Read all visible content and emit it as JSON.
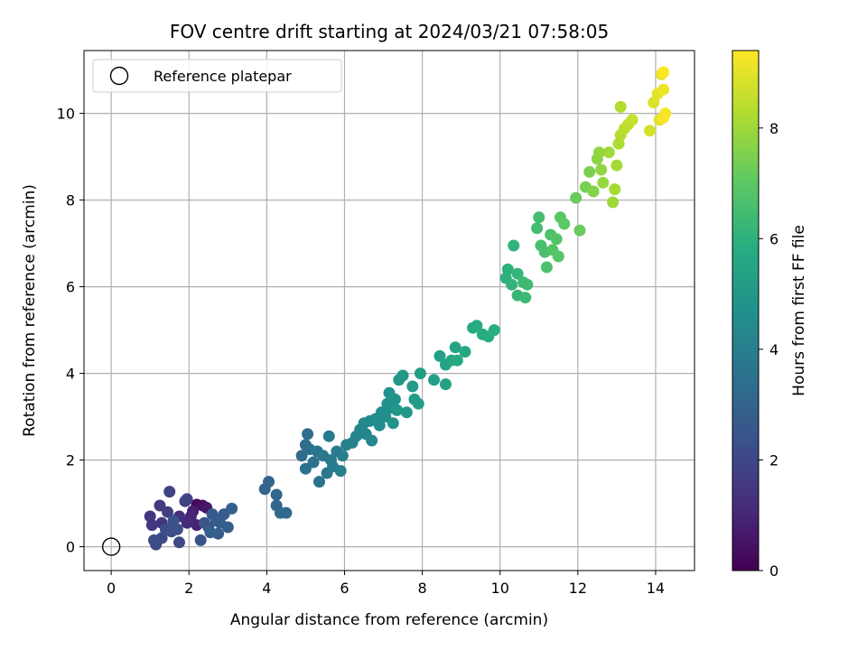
{
  "chart_data": {
    "type": "scatter",
    "title": "FOV centre drift starting at 2024/03/21 07:58:05",
    "xlabel": "Angular distance from reference (arcmin)",
    "ylabel": "Rotation from reference (arcmin)",
    "xlim": [
      -0.7,
      15.0
    ],
    "ylim": [
      -0.55,
      11.45
    ],
    "xticks": [
      0,
      2,
      4,
      6,
      8,
      10,
      12,
      14
    ],
    "yticks": [
      0,
      2,
      4,
      6,
      8,
      10
    ],
    "grid": true,
    "legend": {
      "location": "upper-left",
      "entries": [
        "Reference platepar"
      ]
    },
    "colorbar": {
      "label": "Hours from first FF file",
      "colormap": "viridis",
      "range": [
        0,
        9.4
      ],
      "ticks": [
        0,
        2,
        4,
        6,
        8
      ]
    },
    "reference_point": {
      "x": 0,
      "y": 0,
      "label": "Reference platepar"
    },
    "points": [
      {
        "x": 2.2,
        "y": 0.97,
        "h": 0.2
      },
      {
        "x": 2.35,
        "y": 0.95,
        "h": 0.4
      },
      {
        "x": 2.45,
        "y": 0.9,
        "h": 0.6
      },
      {
        "x": 2.1,
        "y": 0.82,
        "h": 0.8
      },
      {
        "x": 2.2,
        "y": 0.5,
        "h": 0.9
      },
      {
        "x": 2.05,
        "y": 0.7,
        "h": 1.0
      },
      {
        "x": 1.95,
        "y": 0.55,
        "h": 1.1
      },
      {
        "x": 1.75,
        "y": 0.7,
        "h": 1.2
      },
      {
        "x": 1.6,
        "y": 0.5,
        "h": 1.3
      },
      {
        "x": 1.3,
        "y": 0.55,
        "h": 1.4
      },
      {
        "x": 1.05,
        "y": 0.5,
        "h": 1.5
      },
      {
        "x": 1.0,
        "y": 0.7,
        "h": 1.5
      },
      {
        "x": 1.25,
        "y": 0.95,
        "h": 1.6
      },
      {
        "x": 1.45,
        "y": 0.8,
        "h": 1.7
      },
      {
        "x": 1.5,
        "y": 1.27,
        "h": 1.8
      },
      {
        "x": 1.9,
        "y": 1.05,
        "h": 1.8
      },
      {
        "x": 1.95,
        "y": 1.1,
        "h": 1.9
      },
      {
        "x": 1.75,
        "y": 0.1,
        "h": 2.0
      },
      {
        "x": 1.15,
        "y": 0.1,
        "h": 2.0
      },
      {
        "x": 1.3,
        "y": 0.2,
        "h": 2.1
      },
      {
        "x": 1.15,
        "y": 0.05,
        "h": 2.1
      },
      {
        "x": 1.1,
        "y": 0.15,
        "h": 2.2
      },
      {
        "x": 1.4,
        "y": 0.4,
        "h": 2.2
      },
      {
        "x": 1.55,
        "y": 0.35,
        "h": 2.3
      },
      {
        "x": 1.7,
        "y": 0.4,
        "h": 2.3
      },
      {
        "x": 1.6,
        "y": 0.6,
        "h": 2.4
      },
      {
        "x": 2.3,
        "y": 0.15,
        "h": 2.4
      },
      {
        "x": 2.4,
        "y": 0.55,
        "h": 2.5
      },
      {
        "x": 2.5,
        "y": 0.45,
        "h": 2.5
      },
      {
        "x": 2.6,
        "y": 0.75,
        "h": 2.6
      },
      {
        "x": 2.7,
        "y": 0.6,
        "h": 2.6
      },
      {
        "x": 2.75,
        "y": 0.3,
        "h": 2.7
      },
      {
        "x": 2.9,
        "y": 0.75,
        "h": 2.7
      },
      {
        "x": 2.8,
        "y": 0.55,
        "h": 2.8
      },
      {
        "x": 3.0,
        "y": 0.45,
        "h": 2.8
      },
      {
        "x": 3.1,
        "y": 0.88,
        "h": 2.9
      },
      {
        "x": 2.55,
        "y": 0.33,
        "h": 2.9
      },
      {
        "x": 3.95,
        "y": 1.33,
        "h": 3.0
      },
      {
        "x": 4.05,
        "y": 1.5,
        "h": 3.0
      },
      {
        "x": 4.25,
        "y": 1.2,
        "h": 3.1
      },
      {
        "x": 4.25,
        "y": 0.95,
        "h": 3.1
      },
      {
        "x": 4.35,
        "y": 0.78,
        "h": 3.2
      },
      {
        "x": 4.5,
        "y": 0.78,
        "h": 3.2
      },
      {
        "x": 4.9,
        "y": 2.1,
        "h": 3.3
      },
      {
        "x": 5.0,
        "y": 2.35,
        "h": 3.3
      },
      {
        "x": 5.05,
        "y": 2.6,
        "h": 3.4
      },
      {
        "x": 5.1,
        "y": 2.25,
        "h": 3.4
      },
      {
        "x": 5.0,
        "y": 1.8,
        "h": 3.5
      },
      {
        "x": 5.2,
        "y": 1.95,
        "h": 3.5
      },
      {
        "x": 5.35,
        "y": 1.5,
        "h": 3.6
      },
      {
        "x": 5.3,
        "y": 2.2,
        "h": 3.6
      },
      {
        "x": 5.45,
        "y": 2.1,
        "h": 3.7
      },
      {
        "x": 5.55,
        "y": 1.7,
        "h": 3.7
      },
      {
        "x": 5.6,
        "y": 2.55,
        "h": 3.8
      },
      {
        "x": 5.65,
        "y": 2.0,
        "h": 3.8
      },
      {
        "x": 5.7,
        "y": 1.85,
        "h": 3.9
      },
      {
        "x": 5.8,
        "y": 2.2,
        "h": 3.9
      },
      {
        "x": 5.9,
        "y": 1.75,
        "h": 4.0
      },
      {
        "x": 5.95,
        "y": 2.1,
        "h": 4.0
      },
      {
        "x": 6.05,
        "y": 2.35,
        "h": 4.1
      },
      {
        "x": 6.2,
        "y": 2.4,
        "h": 4.1
      },
      {
        "x": 6.3,
        "y": 2.55,
        "h": 4.2
      },
      {
        "x": 6.4,
        "y": 2.7,
        "h": 4.2
      },
      {
        "x": 6.5,
        "y": 2.85,
        "h": 4.3
      },
      {
        "x": 6.55,
        "y": 2.6,
        "h": 4.3
      },
      {
        "x": 6.7,
        "y": 2.45,
        "h": 4.4
      },
      {
        "x": 6.65,
        "y": 2.9,
        "h": 4.4
      },
      {
        "x": 6.8,
        "y": 2.95,
        "h": 4.5
      },
      {
        "x": 6.9,
        "y": 2.8,
        "h": 4.5
      },
      {
        "x": 6.95,
        "y": 3.1,
        "h": 4.6
      },
      {
        "x": 7.05,
        "y": 3.0,
        "h": 4.6
      },
      {
        "x": 7.1,
        "y": 3.3,
        "h": 4.7
      },
      {
        "x": 7.15,
        "y": 3.55,
        "h": 4.7
      },
      {
        "x": 7.2,
        "y": 3.2,
        "h": 4.7
      },
      {
        "x": 7.25,
        "y": 2.85,
        "h": 4.8
      },
      {
        "x": 7.3,
        "y": 3.4,
        "h": 4.8
      },
      {
        "x": 7.35,
        "y": 3.15,
        "h": 4.9
      },
      {
        "x": 7.4,
        "y": 3.85,
        "h": 4.9
      },
      {
        "x": 7.5,
        "y": 3.95,
        "h": 5.0
      },
      {
        "x": 7.6,
        "y": 3.1,
        "h": 5.0
      },
      {
        "x": 7.75,
        "y": 3.7,
        "h": 5.1
      },
      {
        "x": 7.8,
        "y": 3.4,
        "h": 5.1
      },
      {
        "x": 7.9,
        "y": 3.3,
        "h": 5.2
      },
      {
        "x": 7.95,
        "y": 4.0,
        "h": 5.2
      },
      {
        "x": 8.3,
        "y": 3.85,
        "h": 5.3
      },
      {
        "x": 8.45,
        "y": 4.4,
        "h": 5.3
      },
      {
        "x": 8.6,
        "y": 3.75,
        "h": 5.4
      },
      {
        "x": 8.6,
        "y": 4.2,
        "h": 5.4
      },
      {
        "x": 8.75,
        "y": 4.3,
        "h": 5.5
      },
      {
        "x": 8.85,
        "y": 4.6,
        "h": 5.5
      },
      {
        "x": 8.9,
        "y": 4.3,
        "h": 5.6
      },
      {
        "x": 9.1,
        "y": 4.5,
        "h": 5.6
      },
      {
        "x": 9.3,
        "y": 5.05,
        "h": 5.7
      },
      {
        "x": 9.4,
        "y": 5.1,
        "h": 5.7
      },
      {
        "x": 9.55,
        "y": 4.9,
        "h": 5.8
      },
      {
        "x": 9.7,
        "y": 4.85,
        "h": 5.8
      },
      {
        "x": 9.85,
        "y": 5.0,
        "h": 5.9
      },
      {
        "x": 10.15,
        "y": 6.2,
        "h": 6.0
      },
      {
        "x": 10.2,
        "y": 6.4,
        "h": 6.0
      },
      {
        "x": 10.3,
        "y": 6.05,
        "h": 6.1
      },
      {
        "x": 10.35,
        "y": 6.95,
        "h": 6.1
      },
      {
        "x": 10.45,
        "y": 6.3,
        "h": 6.2
      },
      {
        "x": 10.45,
        "y": 5.8,
        "h": 6.2
      },
      {
        "x": 10.6,
        "y": 6.1,
        "h": 6.3
      },
      {
        "x": 10.65,
        "y": 5.75,
        "h": 6.3
      },
      {
        "x": 10.7,
        "y": 6.05,
        "h": 6.4
      },
      {
        "x": 10.95,
        "y": 7.35,
        "h": 6.5
      },
      {
        "x": 11.0,
        "y": 7.6,
        "h": 6.5
      },
      {
        "x": 11.05,
        "y": 6.95,
        "h": 6.6
      },
      {
        "x": 11.15,
        "y": 6.8,
        "h": 6.6
      },
      {
        "x": 11.2,
        "y": 6.45,
        "h": 6.7
      },
      {
        "x": 11.3,
        "y": 7.2,
        "h": 6.7
      },
      {
        "x": 11.35,
        "y": 6.85,
        "h": 6.8
      },
      {
        "x": 11.45,
        "y": 7.1,
        "h": 6.8
      },
      {
        "x": 11.5,
        "y": 6.7,
        "h": 6.9
      },
      {
        "x": 11.55,
        "y": 7.6,
        "h": 6.9
      },
      {
        "x": 11.65,
        "y": 7.45,
        "h": 7.0
      },
      {
        "x": 11.95,
        "y": 8.05,
        "h": 7.2
      },
      {
        "x": 12.05,
        "y": 7.3,
        "h": 7.2
      },
      {
        "x": 12.2,
        "y": 8.3,
        "h": 7.4
      },
      {
        "x": 12.3,
        "y": 8.65,
        "h": 7.5
      },
      {
        "x": 12.4,
        "y": 8.2,
        "h": 7.6
      },
      {
        "x": 12.5,
        "y": 8.95,
        "h": 7.7
      },
      {
        "x": 12.55,
        "y": 9.1,
        "h": 7.8
      },
      {
        "x": 12.6,
        "y": 8.7,
        "h": 7.8
      },
      {
        "x": 12.65,
        "y": 8.4,
        "h": 7.9
      },
      {
        "x": 12.8,
        "y": 9.1,
        "h": 8.0
      },
      {
        "x": 12.9,
        "y": 7.95,
        "h": 8.0
      },
      {
        "x": 12.95,
        "y": 8.25,
        "h": 8.1
      },
      {
        "x": 13.0,
        "y": 8.8,
        "h": 8.1
      },
      {
        "x": 13.05,
        "y": 9.3,
        "h": 8.2
      },
      {
        "x": 13.1,
        "y": 9.5,
        "h": 8.3
      },
      {
        "x": 13.1,
        "y": 10.15,
        "h": 8.3
      },
      {
        "x": 13.2,
        "y": 9.65,
        "h": 8.4
      },
      {
        "x": 13.3,
        "y": 9.75,
        "h": 8.5
      },
      {
        "x": 13.4,
        "y": 9.85,
        "h": 8.6
      },
      {
        "x": 13.85,
        "y": 9.6,
        "h": 8.8
      },
      {
        "x": 13.95,
        "y": 10.25,
        "h": 8.9
      },
      {
        "x": 14.05,
        "y": 10.45,
        "h": 9.0
      },
      {
        "x": 14.1,
        "y": 9.85,
        "h": 9.0
      },
      {
        "x": 14.15,
        "y": 10.9,
        "h": 9.1
      },
      {
        "x": 14.2,
        "y": 10.55,
        "h": 9.2
      },
      {
        "x": 14.25,
        "y": 10.0,
        "h": 9.3
      },
      {
        "x": 14.2,
        "y": 9.9,
        "h": 9.3
      },
      {
        "x": 14.2,
        "y": 10.95,
        "h": 9.4
      }
    ]
  }
}
